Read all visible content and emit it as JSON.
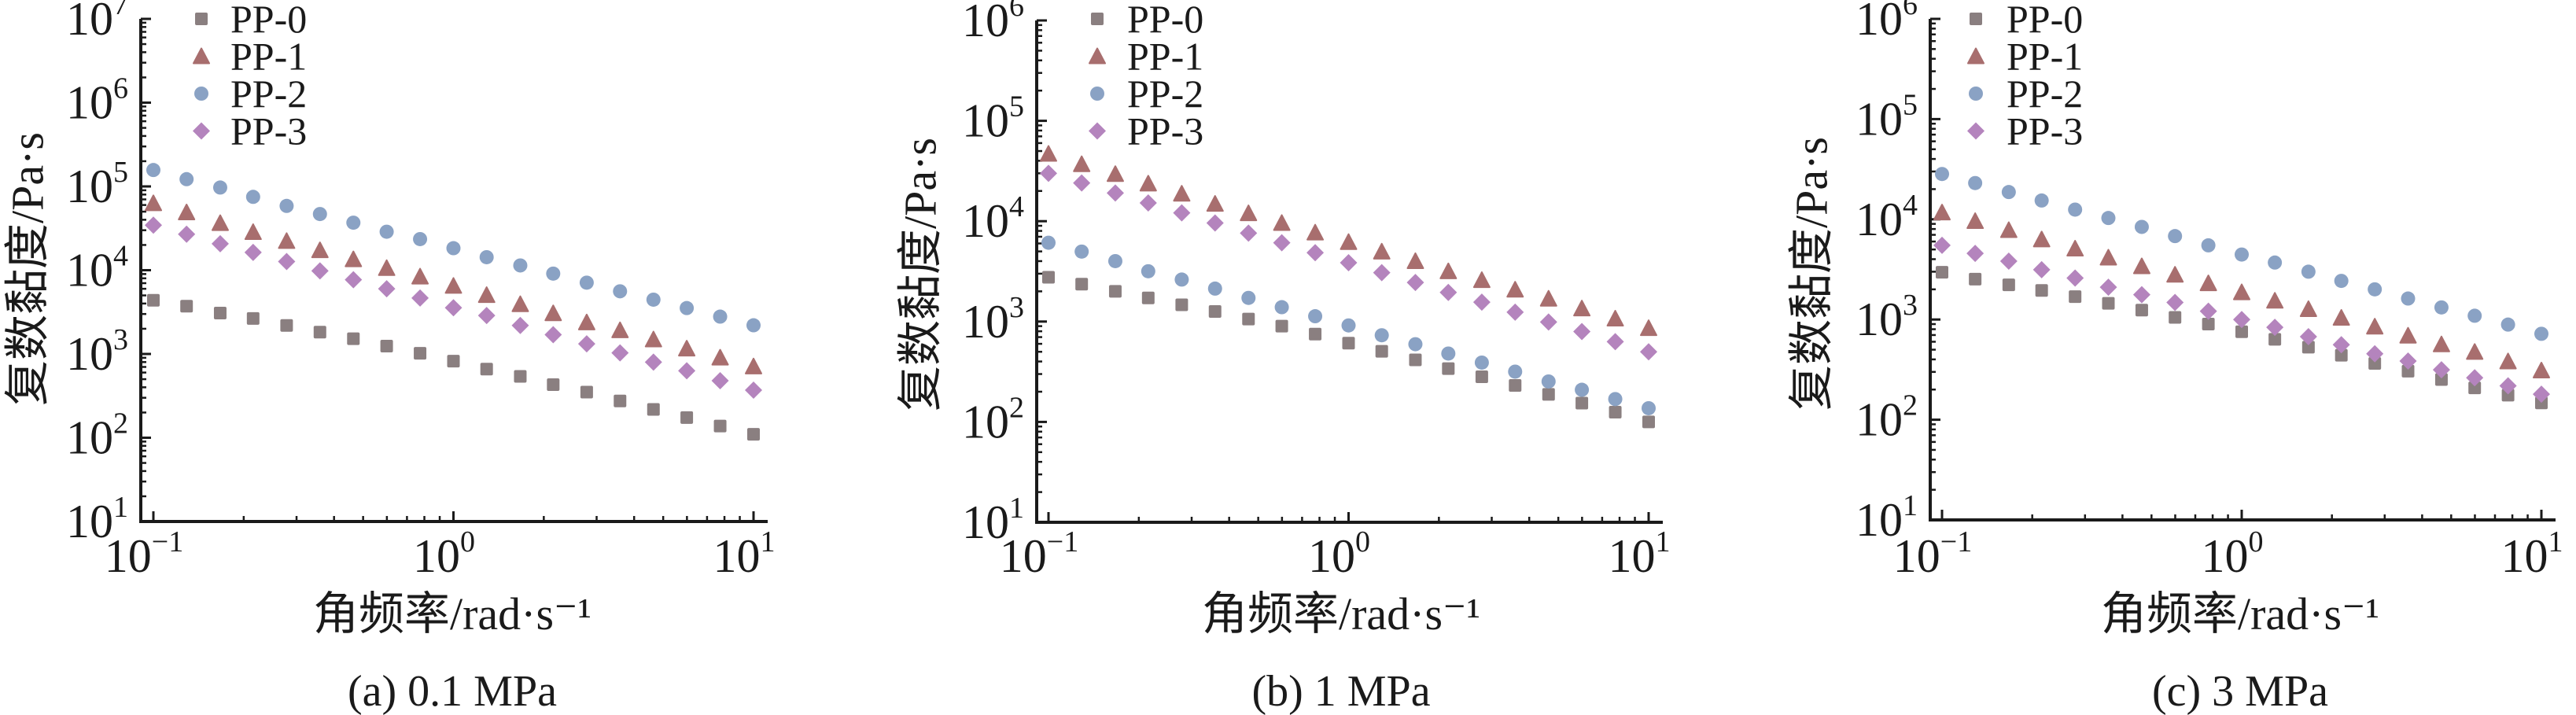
{
  "chart_data": [
    {
      "type": "scatter",
      "caption": "(a) 0.1 MPa",
      "xlabel": "角频率/rad·s⁻¹",
      "ylabel": "复数黏度/Pa·s",
      "xscale": "log",
      "yscale": "log",
      "xlim": [
        0.1,
        10
      ],
      "ylim": [
        10,
        10000000
      ],
      "x_tick_exponents": [
        "−1",
        "0",
        "1"
      ],
      "y_tick_exponents": [
        "1",
        "2",
        "3",
        "4",
        "5",
        "6",
        "7"
      ],
      "tick_base": "10",
      "legend_position": "top-left",
      "x": [
        0.1,
        0.129,
        0.167,
        0.215,
        0.278,
        0.359,
        0.464,
        0.599,
        0.774,
        1,
        1.29,
        1.67,
        2.15,
        2.78,
        3.59,
        4.64,
        5.99,
        7.74,
        10
      ],
      "series": [
        {
          "name": "PP-0",
          "marker": "square",
          "color": "#8a7f80",
          "values": [
            4370,
            3720,
            3080,
            2650,
            2190,
            1820,
            1520,
            1240,
            1020,
            820,
            660,
            540,
            430,
            350,
            275,
            218,
            174,
            138,
            110
          ]
        },
        {
          "name": "PP-1",
          "marker": "triangle",
          "color": "#a86e6e",
          "values": [
            63000,
            49000,
            36500,
            28500,
            22300,
            17300,
            13500,
            10600,
            8400,
            6500,
            5050,
            3930,
            3060,
            2380,
            1920,
            1490,
            1160,
            905,
            710
          ]
        },
        {
          "name": "PP-2",
          "marker": "circle",
          "color": "#8aa2c4",
          "values": [
            157000,
            122000,
            97000,
            75000,
            58500,
            46800,
            36900,
            28800,
            23500,
            18300,
            14300,
            11400,
            9100,
            7100,
            5600,
            4450,
            3530,
            2790,
            2200
          ]
        },
        {
          "name": "PP-3",
          "marker": "diamond",
          "color": "#b484bd",
          "values": [
            34500,
            26900,
            20700,
            16300,
            12700,
            9800,
            7700,
            6000,
            4650,
            3560,
            2880,
            2190,
            1700,
            1320,
            1030,
            800,
            630,
            480,
            370
          ]
        }
      ]
    },
    {
      "type": "scatter",
      "caption": "(b) 1 MPa",
      "xlabel": "角频率/rad·s⁻¹",
      "ylabel": "复数黏度/Pa·s",
      "xscale": "log",
      "yscale": "log",
      "xlim": [
        0.1,
        10
      ],
      "ylim": [
        10,
        1000000
      ],
      "x_tick_exponents": [
        "−1",
        "0",
        "1"
      ],
      "y_tick_exponents": [
        "1",
        "2",
        "3",
        "4",
        "5",
        "6"
      ],
      "tick_base": "10",
      "legend_position": "top-left",
      "x": [
        0.1,
        0.129,
        0.167,
        0.215,
        0.278,
        0.359,
        0.464,
        0.599,
        0.774,
        1,
        1.29,
        1.67,
        2.15,
        2.78,
        3.59,
        4.64,
        5.99,
        7.74,
        10
      ],
      "series": [
        {
          "name": "PP-0",
          "marker": "square",
          "color": "#8a7f80",
          "values": [
            2760,
            2360,
            2000,
            1720,
            1470,
            1260,
            1060,
            900,
            750,
            610,
            505,
            415,
            340,
            282,
            231,
            188,
            154,
            125,
            100
          ]
        },
        {
          "name": "PP-1",
          "marker": "triangle",
          "color": "#a86e6e",
          "values": [
            46900,
            37000,
            29500,
            23700,
            18800,
            14900,
            12000,
            9600,
            7700,
            6200,
            4980,
            4000,
            3170,
            2590,
            2080,
            1690,
            1350,
            1070,
            860
          ]
        },
        {
          "name": "PP-2",
          "marker": "circle",
          "color": "#8aa2c4",
          "values": [
            6100,
            4980,
            4000,
            3170,
            2620,
            2130,
            1720,
            1390,
            1130,
            915,
            730,
            595,
            480,
            390,
            317,
            253,
            209,
            169,
            137
          ]
        },
        {
          "name": "PP-3",
          "marker": "diamond",
          "color": "#b484bd",
          "values": [
            30000,
            24000,
            19100,
            15200,
            12100,
            9600,
            7600,
            6100,
            4850,
            3860,
            3070,
            2450,
            1950,
            1560,
            1240,
            990,
            795,
            630,
            500
          ]
        }
      ]
    },
    {
      "type": "scatter",
      "caption": "(c) 3 MPa",
      "xlabel": "角频率/rad·s⁻¹",
      "ylabel": "复数黏度/Pa·s",
      "xscale": "log",
      "yscale": "log",
      "xlim": [
        0.1,
        10
      ],
      "ylim": [
        10,
        1000000
      ],
      "x_tick_exponents": [
        "−1",
        "0",
        "1"
      ],
      "y_tick_exponents": [
        "1",
        "2",
        "3",
        "4",
        "5",
        "6"
      ],
      "tick_base": "10",
      "legend_position": "top-left",
      "x": [
        0.1,
        0.129,
        0.167,
        0.215,
        0.278,
        0.359,
        0.464,
        0.599,
        0.774,
        1,
        1.29,
        1.67,
        2.15,
        2.78,
        3.59,
        4.64,
        5.99,
        7.74,
        10
      ],
      "series": [
        {
          "name": "PP-0",
          "marker": "square",
          "color": "#8a7f80",
          "values": [
            2960,
            2530,
            2220,
            1950,
            1690,
            1450,
            1240,
            1050,
            900,
            755,
            635,
            530,
            440,
            365,
            305,
            252,
            208,
            176,
            147
          ]
        },
        {
          "name": "PP-1",
          "marker": "triangle",
          "color": "#a86e6e",
          "values": [
            11700,
            9600,
            7800,
            6300,
            5100,
            4150,
            3400,
            2800,
            2300,
            1870,
            1540,
            1270,
            1040,
            850,
            690,
            565,
            475,
            382,
            310
          ]
        },
        {
          "name": "PP-2",
          "marker": "circle",
          "color": "#8aa2c4",
          "values": [
            28300,
            23000,
            18700,
            15400,
            12500,
            10300,
            8400,
            6800,
            5500,
            4450,
            3700,
            3000,
            2430,
            2000,
            1620,
            1320,
            1090,
            890,
            720
          ]
        },
        {
          "name": "PP-3",
          "marker": "diamond",
          "color": "#b484bd",
          "values": [
            5500,
            4570,
            3820,
            3140,
            2590,
            2100,
            1770,
            1480,
            1210,
            1000,
            835,
            675,
            560,
            455,
            385,
            315,
            262,
            218,
            180
          ]
        }
      ]
    }
  ]
}
